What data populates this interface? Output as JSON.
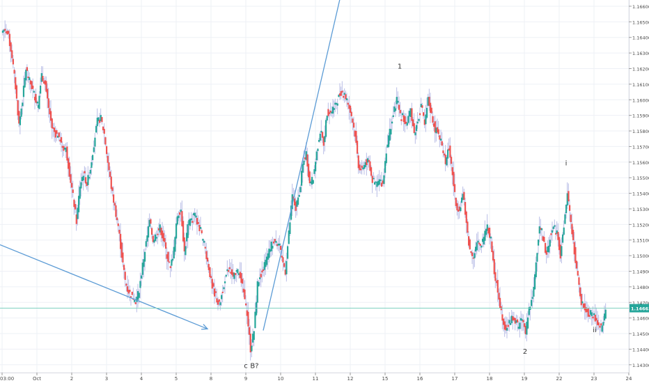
{
  "chart_data": {
    "type": "candlestick",
    "instrument_note": "",
    "y_ticks": [
      "1.14300",
      "1.14400",
      "1.14500",
      "1.14600",
      "1.14700",
      "1.14800",
      "1.14900",
      "1.15000",
      "1.15100",
      "1.15200",
      "1.15300",
      "1.15400",
      "1.15500",
      "1.15600",
      "1.15700",
      "1.15800",
      "1.15900",
      "1.16000",
      "1.16100",
      "1.16200",
      "1.16300",
      "1.16400",
      "1.16500",
      "1.16600"
    ],
    "y_tick_values": [
      1.143,
      1.144,
      1.145,
      1.146,
      1.147,
      1.148,
      1.149,
      1.15,
      1.151,
      1.152,
      1.153,
      1.154,
      1.155,
      1.156,
      1.157,
      1.158,
      1.159,
      1.16,
      1.161,
      1.162,
      1.163,
      1.164,
      1.165,
      1.166
    ],
    "ylim": [
      1.1425,
      1.1664
    ],
    "x_ticks": [
      "03:00",
      "Oct",
      "2",
      "3",
      "4",
      "5",
      "8",
      "9",
      "10",
      "11",
      "12",
      "15",
      "16",
      "17",
      "18",
      "19",
      "22",
      "23",
      "24"
    ],
    "x_tick_days": [
      0,
      1,
      2,
      3,
      4,
      5,
      6,
      7,
      8,
      9,
      10,
      11,
      12,
      13,
      14,
      15,
      16,
      17,
      18
    ],
    "xlim": [
      -0.06,
      18.0
    ],
    "current_price": "1.14663",
    "current_price_value": 1.14663,
    "colors": {
      "up": "#26a69a",
      "down": "#ef5350",
      "wick": "#b9bde6",
      "trendline": "#5b9bd5",
      "price_line": "#7fd1c0",
      "price_label_bg": "#26a69a",
      "grid": "#eef0f6",
      "axis_text": "#4a4a4a",
      "annotation": "#333333"
    },
    "series_close": [
      [
        0.0,
        1.1643
      ],
      [
        0.1,
        1.1646
      ],
      [
        0.2,
        1.164
      ],
      [
        0.3,
        1.1628
      ],
      [
        0.4,
        1.1608
      ],
      [
        0.5,
        1.1584
      ],
      [
        0.6,
        1.16
      ],
      [
        0.7,
        1.162
      ],
      [
        0.8,
        1.1612
      ],
      [
        0.9,
        1.1606
      ],
      [
        0.98,
        1.16
      ],
      [
        1.05,
        1.1596
      ],
      [
        1.15,
        1.1616
      ],
      [
        1.25,
        1.161
      ],
      [
        1.35,
        1.1595
      ],
      [
        1.45,
        1.1582
      ],
      [
        1.55,
        1.1578
      ],
      [
        1.65,
        1.1576
      ],
      [
        1.75,
        1.157
      ],
      [
        1.85,
        1.1568
      ],
      [
        1.95,
        1.1553
      ],
      [
        2.05,
        1.1538
      ],
      [
        2.15,
        1.1522
      ],
      [
        2.25,
        1.1545
      ],
      [
        2.35,
        1.1553
      ],
      [
        2.45,
        1.1546
      ],
      [
        2.55,
        1.1556
      ],
      [
        2.65,
        1.1572
      ],
      [
        2.75,
        1.1586
      ],
      [
        2.85,
        1.1588
      ],
      [
        2.95,
        1.1578
      ],
      [
        3.05,
        1.156
      ],
      [
        3.15,
        1.1544
      ],
      [
        3.25,
        1.1531
      ],
      [
        3.35,
        1.1519
      ],
      [
        3.45,
        1.15
      ],
      [
        3.55,
        1.1484
      ],
      [
        3.65,
        1.1477
      ],
      [
        3.75,
        1.1474
      ],
      [
        3.85,
        1.147
      ],
      [
        3.95,
        1.1478
      ],
      [
        4.05,
        1.1494
      ],
      [
        4.15,
        1.1508
      ],
      [
        4.25,
        1.1522
      ],
      [
        4.35,
        1.151
      ],
      [
        4.45,
        1.1514
      ],
      [
        4.55,
        1.1518
      ],
      [
        4.65,
        1.151
      ],
      [
        4.75,
        1.15
      ],
      [
        4.85,
        1.1492
      ],
      [
        4.95,
        1.1504
      ],
      [
        5.05,
        1.1526
      ],
      [
        5.15,
        1.153
      ],
      [
        5.25,
        1.1502
      ],
      [
        5.35,
        1.1519
      ],
      [
        5.45,
        1.1524
      ],
      [
        5.55,
        1.1526
      ],
      [
        5.65,
        1.152
      ],
      [
        5.75,
        1.1512
      ],
      [
        5.85,
        1.1504
      ],
      [
        5.95,
        1.1492
      ],
      [
        6.05,
        1.148
      ],
      [
        6.15,
        1.1474
      ],
      [
        6.25,
        1.1468
      ],
      [
        6.35,
        1.1478
      ],
      [
        6.45,
        1.1488
      ],
      [
        6.55,
        1.1492
      ],
      [
        6.65,
        1.1485
      ],
      [
        6.75,
        1.149
      ],
      [
        6.85,
        1.1488
      ],
      [
        6.95,
        1.1476
      ],
      [
        7.05,
        1.1463
      ],
      [
        7.15,
        1.144
      ],
      [
        7.25,
        1.1452
      ],
      [
        7.35,
        1.1482
      ],
      [
        7.45,
        1.1488
      ],
      [
        7.55,
        1.1494
      ],
      [
        7.65,
        1.15
      ],
      [
        7.75,
        1.1507
      ],
      [
        7.85,
        1.151
      ],
      [
        7.95,
        1.1508
      ],
      [
        8.05,
        1.1498
      ],
      [
        8.15,
        1.149
      ],
      [
        8.25,
        1.1514
      ],
      [
        8.35,
        1.1538
      ],
      [
        8.45,
        1.153
      ],
      [
        8.55,
        1.154
      ],
      [
        8.65,
        1.1558
      ],
      [
        8.75,
        1.1566
      ],
      [
        8.85,
        1.1546
      ],
      [
        8.95,
        1.155
      ],
      [
        9.05,
        1.1566
      ],
      [
        9.15,
        1.158
      ],
      [
        9.25,
        1.1572
      ],
      [
        9.35,
        1.1592
      ],
      [
        9.45,
        1.1592
      ],
      [
        9.55,
        1.1596
      ],
      [
        9.65,
        1.16
      ],
      [
        9.75,
        1.1605
      ],
      [
        9.85,
        1.1604
      ],
      [
        9.95,
        1.1597
      ],
      [
        10.05,
        1.159
      ],
      [
        10.15,
        1.1578
      ],
      [
        10.25,
        1.1558
      ],
      [
        10.35,
        1.1554
      ],
      [
        10.45,
        1.156
      ],
      [
        10.55,
        1.156
      ],
      [
        10.65,
        1.1548
      ],
      [
        10.75,
        1.1546
      ],
      [
        10.85,
        1.1548
      ],
      [
        10.95,
        1.1546
      ],
      [
        11.05,
        1.1568
      ],
      [
        11.15,
        1.158
      ],
      [
        11.25,
        1.159
      ],
      [
        11.35,
        1.16
      ],
      [
        11.45,
        1.159
      ],
      [
        11.55,
        1.1588
      ],
      [
        11.65,
        1.1584
      ],
      [
        11.75,
        1.1594
      ],
      [
        11.85,
        1.1578
      ],
      [
        11.95,
        1.1586
      ],
      [
        12.05,
        1.1597
      ],
      [
        12.15,
        1.1583
      ],
      [
        12.25,
        1.16
      ],
      [
        12.35,
        1.159
      ],
      [
        12.45,
        1.1581
      ],
      [
        12.55,
        1.1578
      ],
      [
        12.65,
        1.157
      ],
      [
        12.75,
        1.156
      ],
      [
        12.85,
        1.157
      ],
      [
        12.95,
        1.1552
      ],
      [
        13.05,
        1.1532
      ],
      [
        13.15,
        1.153
      ],
      [
        13.25,
        1.154
      ],
      [
        13.35,
        1.152
      ],
      [
        13.45,
        1.1503
      ],
      [
        13.55,
        1.15
      ],
      [
        13.65,
        1.1508
      ],
      [
        13.75,
        1.1505
      ],
      [
        13.85,
        1.1512
      ],
      [
        13.95,
        1.152
      ],
      [
        14.05,
        1.151
      ],
      [
        14.15,
        1.149
      ],
      [
        14.25,
        1.1478
      ],
      [
        14.35,
        1.1464
      ],
      [
        14.45,
        1.1454
      ],
      [
        14.55,
        1.1455
      ],
      [
        14.65,
        1.146
      ],
      [
        14.75,
        1.1458
      ],
      [
        14.85,
        1.1454
      ],
      [
        14.95,
        1.146
      ],
      [
        15.05,
        1.145
      ],
      [
        15.15,
        1.1466
      ],
      [
        15.25,
        1.1472
      ],
      [
        15.35,
        1.1496
      ],
      [
        15.45,
        1.152
      ],
      [
        15.55,
        1.151
      ],
      [
        15.65,
        1.15
      ],
      [
        15.75,
        1.1512
      ],
      [
        15.85,
        1.1518
      ],
      [
        15.95,
        1.1515
      ],
      [
        16.05,
        1.15
      ],
      [
        16.15,
        1.1518
      ],
      [
        16.25,
        1.154
      ],
      [
        16.35,
        1.152
      ],
      [
        16.45,
        1.1503
      ],
      [
        16.55,
        1.1485
      ],
      [
        16.65,
        1.147
      ],
      [
        16.75,
        1.1466
      ],
      [
        16.85,
        1.1463
      ],
      [
        16.95,
        1.1463
      ],
      [
        17.05,
        1.146
      ],
      [
        17.15,
        1.1455
      ],
      [
        17.25,
        1.1453
      ],
      [
        17.35,
        1.1466
      ]
    ],
    "annotations": [
      {
        "text": "1",
        "day": 11.42,
        "price": 1.162
      },
      {
        "text": "i",
        "day": 16.2,
        "price": 1.1558
      },
      {
        "text": "c",
        "day": 7.0,
        "price": 1.1428
      },
      {
        "text": "B?",
        "day": 7.25,
        "price": 1.1428
      },
      {
        "text": "2",
        "day": 15.02,
        "price": 1.1437
      },
      {
        "text": "ii",
        "day": 17.02,
        "price": 1.1451
      }
    ],
    "trendlines": [
      {
        "from": [
          -0.06,
          1.1507
        ],
        "to": [
          5.9,
          1.1453
        ],
        "arrow": true
      },
      {
        "from": [
          7.5,
          1.1452
        ],
        "to": [
          9.82,
          1.1676
        ],
        "arrow": false
      }
    ]
  }
}
